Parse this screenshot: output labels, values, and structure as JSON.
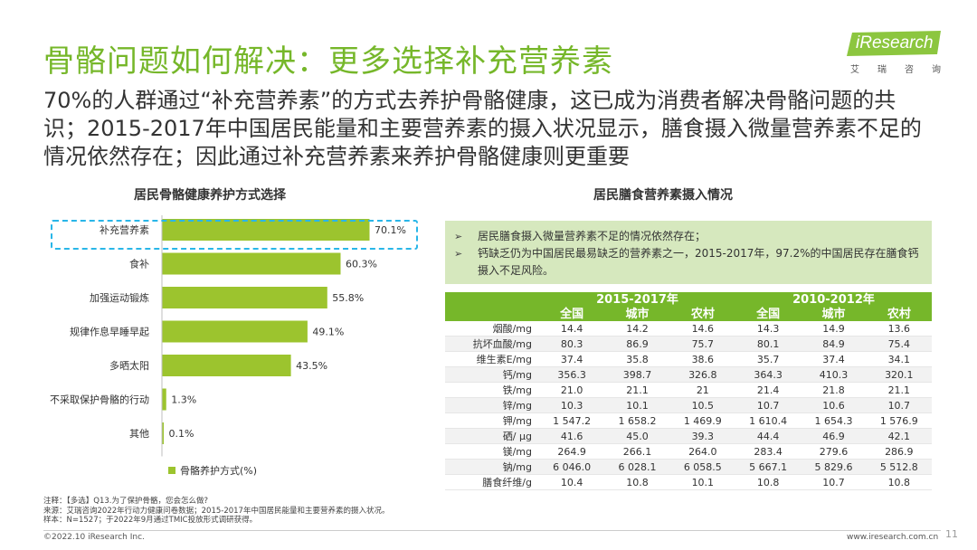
{
  "header": {
    "title": "骨骼问题如何解决：更多选择补充营养素",
    "subtitle": "70%的人群通过“补充营养素”的方式去养护骨骼健康，这已成为消费者解决骨骼问题的共识；2015-2017年中国居民能量和主要营养素的摄入状况显示，膳食摄入微量营养素不足的情况依然存在；因此通过补充营养素来养护骨骼健康则更重要"
  },
  "logo": {
    "brand": "iResearch",
    "cn": [
      "艾",
      "瑞",
      "咨",
      "询"
    ]
  },
  "colors": {
    "accent": "#76b72a",
    "bar": "#9cc42e",
    "highlight": "#29b6e8",
    "infobox": "#d6e8be"
  },
  "left_panel": {
    "title": "居民骨骼健康养护方式选择"
  },
  "chart_data": {
    "type": "bar",
    "orientation": "horizontal",
    "categories": [
      "补充营养素",
      "食补",
      "加强运动锻炼",
      "规律作息早睡早起",
      "多晒太阳",
      "不采取保护骨骼的行动",
      "其他"
    ],
    "values": [
      70.1,
      60.3,
      55.8,
      49.1,
      43.5,
      1.3,
      0.1
    ],
    "labels": [
      "70.1%",
      "60.3%",
      "55.8%",
      "49.1%",
      "43.5%",
      "1.3%",
      "0.1%"
    ],
    "series": [
      {
        "name": "骨骼养护方式(%)",
        "values": [
          70.1,
          60.3,
          55.8,
          49.1,
          43.5,
          1.3,
          0.1
        ]
      }
    ],
    "xlim": [
      0,
      80
    ],
    "highlighted": "补充营养素",
    "legend_position": "bottom"
  },
  "right_panel": {
    "title": "居民膳食营养素摄入情况",
    "bullets": [
      "居民膳食摄入微量营养素不足的情况依然存在；",
      "钙缺乏仍为中国居民最易缺乏的营养素之一，2015-2017年，97.2%的中国居民存在膳食钙摄入不足风险。"
    ],
    "bullet_icon": "arrow-right-icon"
  },
  "table": {
    "periods": [
      "2015-2017年",
      "2010-2012年"
    ],
    "subheaders": [
      "全国",
      "城市",
      "农村",
      "全国",
      "城市",
      "农村"
    ],
    "rows": [
      {
        "name": "烟酸/mg",
        "values": [
          "14.4",
          "14.2",
          "14.6",
          "14.3",
          "14.9",
          "13.6"
        ]
      },
      {
        "name": "抗坏血酸/mg",
        "values": [
          "80.3",
          "86.9",
          "75.7",
          "80.1",
          "84.9",
          "75.4"
        ]
      },
      {
        "name": "维生素E/mg",
        "values": [
          "37.4",
          "35.8",
          "38.6",
          "35.7",
          "37.4",
          "34.1"
        ]
      },
      {
        "name": "钙/mg",
        "values": [
          "356.3",
          "398.7",
          "326.8",
          "364.3",
          "410.3",
          "320.1"
        ]
      },
      {
        "name": "铁/mg",
        "values": [
          "21.0",
          "21.1",
          "21",
          "21.4",
          "21.8",
          "21.1"
        ]
      },
      {
        "name": "锌/mg",
        "values": [
          "10.3",
          "10.1",
          "10.5",
          "10.7",
          "10.6",
          "10.7"
        ]
      },
      {
        "name": "钾/mg",
        "values": [
          "1 547.2",
          "1 658.2",
          "1 469.9",
          "1 610.4",
          "1 654.3",
          "1 576.9"
        ]
      },
      {
        "name": "硒/ μg",
        "values": [
          "41.6",
          "45.0",
          "39.3",
          "44.4",
          "46.9",
          "42.1"
        ]
      },
      {
        "name": "镁/mg",
        "values": [
          "264.9",
          "266.1",
          "264.0",
          "283.4",
          "279.6",
          "286.9"
        ]
      },
      {
        "name": "钠/mg",
        "values": [
          "6 046.0",
          "6 028.1",
          "6 058.5",
          "5 667.1",
          "5 829.6",
          "5 512.8"
        ]
      },
      {
        "name": "膳食纤维/g",
        "values": [
          "10.4",
          "10.8",
          "10.1",
          "10.8",
          "10.7",
          "10.8"
        ]
      }
    ]
  },
  "notes": [
    "注释：【多选】Q13.为了保护骨骼，您会怎么做?",
    "来源：艾瑞咨询2022年行动力健康问卷数据；2015-2017年中国居民能量和主要营养素的摄入状况。",
    "样本：N=1527；于2022年9月通过TMIC投放形式调研获得。"
  ],
  "footer": {
    "copyright": "©2022.10 iResearch Inc.",
    "site": "www.iresearch.com.cn",
    "page": "11"
  }
}
